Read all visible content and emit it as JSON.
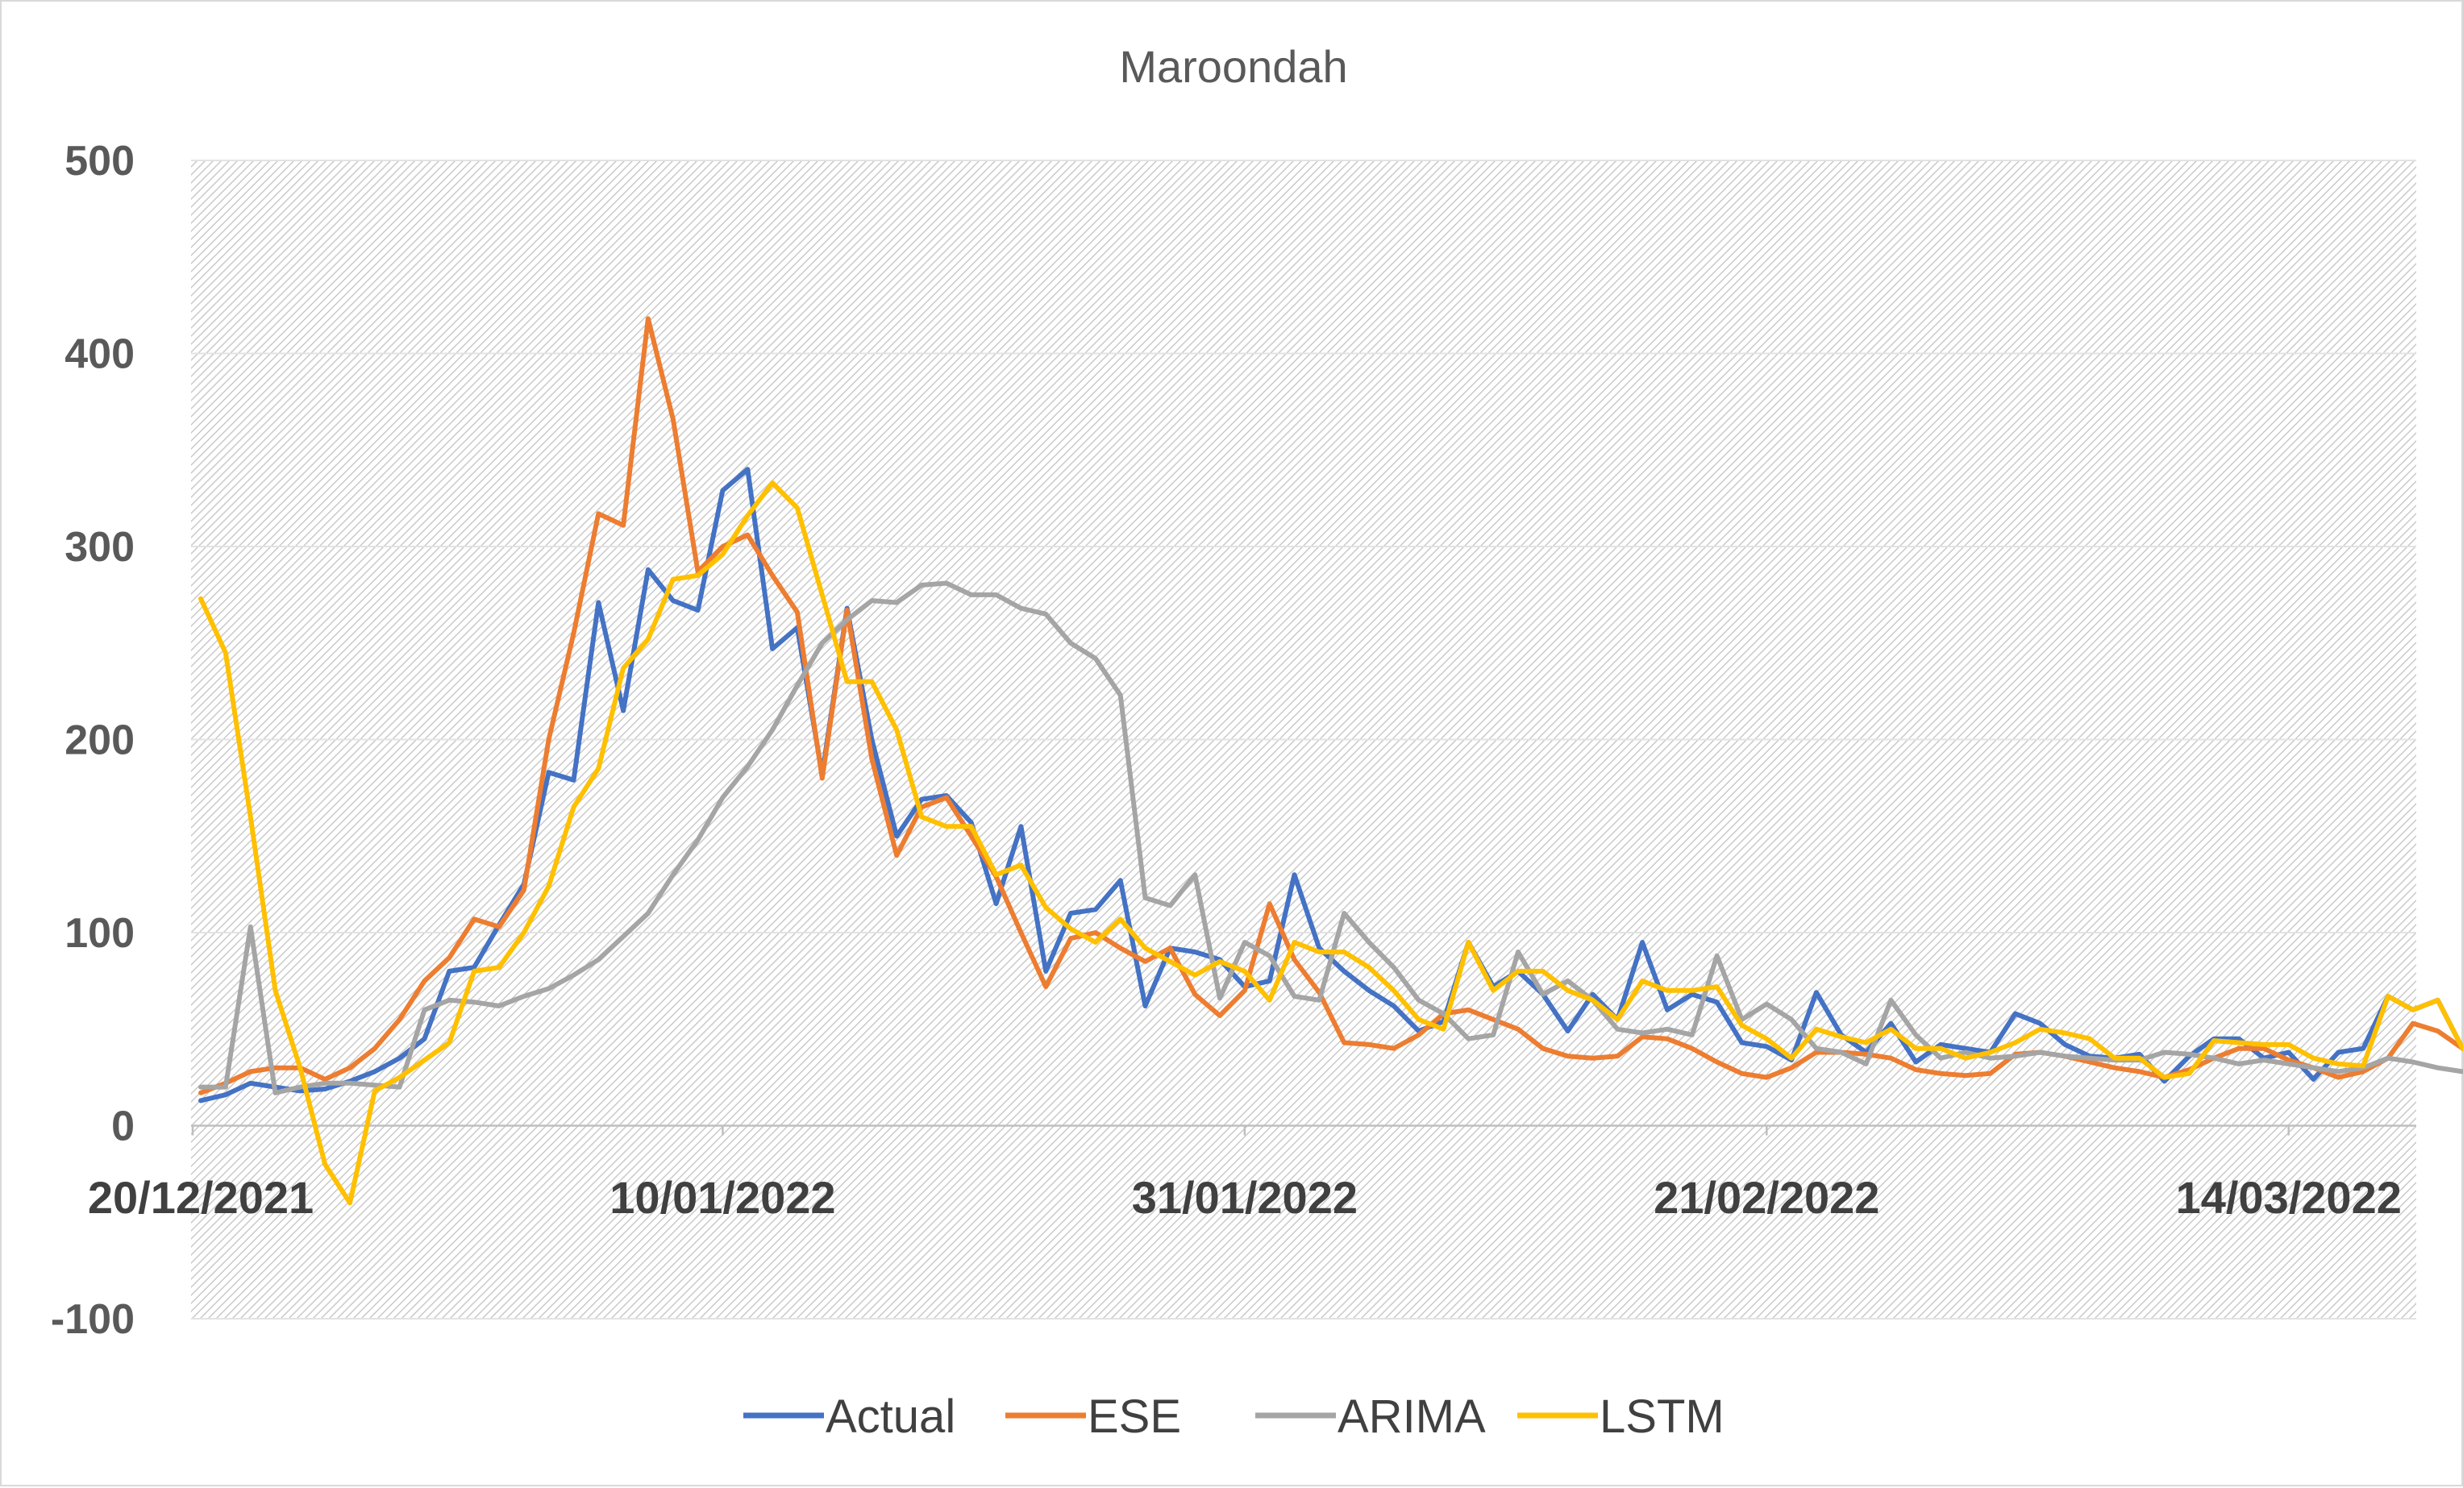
{
  "chart_data": {
    "type": "line",
    "title": "Maroondah",
    "xlabel": "",
    "ylabel": "",
    "ylim": [
      -100,
      500
    ],
    "yticks": [
      -100,
      0,
      100,
      200,
      300,
      400,
      500
    ],
    "ytick_labels": [
      "-100",
      "0",
      "100",
      "200",
      "300",
      "400",
      "500"
    ],
    "x_start": "20/12/2021",
    "x_tick_labels": [
      "20/12/2021",
      "10/01/2022",
      "31/01/2022",
      "21/02/2022",
      "14/03/2022"
    ],
    "x_tick_days": [
      0,
      21,
      42,
      63,
      84
    ],
    "grid": true,
    "legend_position": "bottom",
    "series": [
      {
        "name": "Actual",
        "color": "#4472C4",
        "values": [
          13,
          16,
          22,
          20,
          18,
          19,
          23,
          28,
          35,
          45,
          80,
          82,
          104,
          125,
          183,
          179,
          271,
          215,
          288,
          272,
          267,
          329,
          340,
          247,
          258,
          182,
          268,
          200,
          150,
          169,
          171,
          157,
          115,
          155,
          80,
          110,
          112,
          127,
          62,
          92,
          90,
          86,
          72,
          75,
          130,
          92,
          80,
          70,
          62,
          49,
          54,
          95,
          72,
          80,
          68,
          49,
          68,
          55,
          95,
          60,
          68,
          64,
          43,
          41,
          34,
          69,
          47,
          38,
          53,
          33,
          42,
          40,
          38,
          58,
          53,
          42,
          36,
          35,
          37,
          23,
          36,
          45,
          45,
          35,
          38,
          24,
          38,
          40,
          67,
          60,
          65,
          40
        ]
      },
      {
        "name": "ESE",
        "color": "#ED7D31",
        "values": [
          17,
          22,
          28,
          30,
          30,
          24,
          30,
          40,
          55,
          75,
          87,
          107,
          103,
          122,
          200,
          255,
          317,
          311,
          418,
          366,
          287,
          300,
          306,
          285,
          266,
          180,
          267,
          190,
          140,
          165,
          170,
          150,
          129,
          100,
          72,
          97,
          100,
          92,
          85,
          92,
          68,
          57,
          70,
          115,
          86,
          69,
          43,
          42,
          40,
          47,
          58,
          60,
          55,
          50,
          40,
          36,
          35,
          36,
          46,
          45,
          40,
          33,
          27,
          25,
          30,
          38,
          38,
          37,
          35,
          29,
          27,
          26,
          27,
          37,
          38,
          36,
          33,
          30,
          28,
          25,
          29,
          35,
          40,
          40,
          34,
          30,
          25,
          28,
          35,
          53,
          49,
          40,
          35
        ]
      },
      {
        "name": "ARIMA",
        "color": "#A5A5A5",
        "values": [
          20,
          20,
          103,
          17,
          20,
          22,
          22,
          21,
          20,
          60,
          65,
          64,
          62,
          67,
          71,
          78,
          86,
          98,
          110,
          130,
          148,
          170,
          186,
          205,
          228,
          250,
          262,
          272,
          271,
          280,
          281,
          275,
          275,
          268,
          265,
          250,
          242,
          223,
          118,
          114,
          130,
          66,
          95,
          88,
          67,
          65,
          110,
          95,
          82,
          65,
          58,
          45,
          47,
          90,
          68,
          75,
          65,
          50,
          48,
          50,
          47,
          88,
          55,
          63,
          55,
          40,
          38,
          32,
          65,
          47,
          35,
          38,
          35,
          36,
          38,
          36,
          35,
          34,
          34,
          38,
          37,
          35,
          32,
          34,
          32,
          30,
          28,
          30,
          35,
          33,
          30,
          28,
          30,
          40
        ]
      },
      {
        "name": "LSTM",
        "color": "#FFC000",
        "values": [
          273,
          245,
          160,
          70,
          30,
          -20,
          -40,
          18,
          25,
          34,
          43,
          80,
          82,
          100,
          124,
          165,
          185,
          237,
          252,
          283,
          285,
          296,
          316,
          333,
          320,
          275,
          230,
          230,
          205,
          160,
          155,
          155,
          130,
          135,
          113,
          102,
          95,
          107,
          92,
          85,
          78,
          85,
          80,
          65,
          95,
          90,
          90,
          82,
          70,
          55,
          50,
          95,
          70,
          80,
          80,
          70,
          65,
          55,
          75,
          70,
          70,
          72,
          52,
          45,
          35,
          50,
          46,
          43,
          50,
          40,
          40,
          35,
          38,
          43,
          50,
          48,
          45,
          35,
          35,
          25,
          27,
          44,
          43,
          42,
          42,
          35,
          32,
          31,
          67,
          60,
          65,
          40
        ]
      }
    ]
  }
}
